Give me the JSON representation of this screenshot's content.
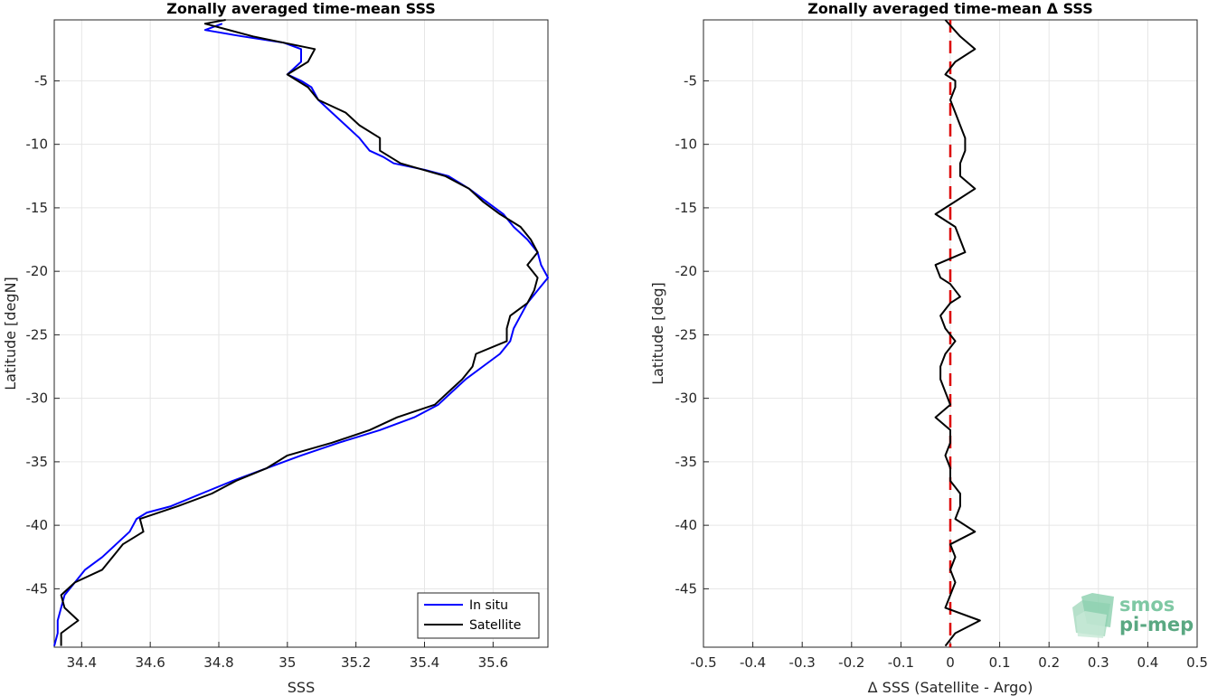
{
  "chart_data": [
    {
      "type": "line",
      "title": "Zonally averaged time-mean SSS",
      "xlabel": "SSS",
      "ylabel": "Latitude [degN]",
      "xlim": [
        34.32,
        35.76
      ],
      "ylim": [
        -49.6,
        -0.2
      ],
      "xticks": [
        34.4,
        34.6,
        34.8,
        35,
        35.2,
        35.4,
        35.6
      ],
      "xtick_labels": [
        "34.4",
        "34.6",
        "34.8",
        "35",
        "35.2",
        "35.4",
        "35.6"
      ],
      "yticks": [
        -5,
        -10,
        -15,
        -20,
        -25,
        -30,
        -35,
        -40,
        -45
      ],
      "ytick_labels": [
        "-5",
        "-10",
        "-15",
        "-20",
        "-25",
        "-30",
        "-35",
        "-40",
        "-45"
      ],
      "grid": true,
      "legend": "bottom-right",
      "series": [
        {
          "name": "In situ",
          "color": "#0000ff",
          "points": [
            [
              34.81,
              -0.5
            ],
            [
              34.76,
              -1.0
            ],
            [
              34.87,
              -1.5
            ],
            [
              34.99,
              -2.0
            ],
            [
              35.04,
              -2.5
            ],
            [
              35.04,
              -3.0
            ],
            [
              35.04,
              -3.5
            ],
            [
              35.02,
              -4.0
            ],
            [
              35.0,
              -4.5
            ],
            [
              35.04,
              -5.0
            ],
            [
              35.07,
              -5.5
            ],
            [
              35.08,
              -6.0
            ],
            [
              35.09,
              -6.5
            ],
            [
              35.13,
              -7.5
            ],
            [
              35.17,
              -8.5
            ],
            [
              35.21,
              -9.5
            ],
            [
              35.24,
              -10.5
            ],
            [
              35.28,
              -11.0
            ],
            [
              35.31,
              -11.5
            ],
            [
              35.4,
              -12.0
            ],
            [
              35.47,
              -12.5
            ],
            [
              35.53,
              -13.5
            ],
            [
              35.58,
              -14.5
            ],
            [
              35.63,
              -15.5
            ],
            [
              35.66,
              -16.5
            ],
            [
              35.7,
              -17.5
            ],
            [
              35.73,
              -18.5
            ],
            [
              35.74,
              -19.5
            ],
            [
              35.76,
              -20.5
            ],
            [
              35.73,
              -21.5
            ],
            [
              35.7,
              -22.5
            ],
            [
              35.68,
              -23.5
            ],
            [
              35.66,
              -24.5
            ],
            [
              35.65,
              -25.5
            ],
            [
              35.62,
              -26.5
            ],
            [
              35.57,
              -27.5
            ],
            [
              35.52,
              -28.5
            ],
            [
              35.48,
              -29.5
            ],
            [
              35.44,
              -30.5
            ],
            [
              35.37,
              -31.5
            ],
            [
              35.27,
              -32.5
            ],
            [
              35.15,
              -33.5
            ],
            [
              35.04,
              -34.5
            ],
            [
              34.94,
              -35.5
            ],
            [
              34.84,
              -36.5
            ],
            [
              34.75,
              -37.5
            ],
            [
              34.66,
              -38.5
            ],
            [
              34.59,
              -39.0
            ],
            [
              34.56,
              -39.5
            ],
            [
              34.54,
              -40.5
            ],
            [
              34.5,
              -41.5
            ],
            [
              34.46,
              -42.5
            ],
            [
              34.41,
              -43.5
            ],
            [
              34.38,
              -44.5
            ],
            [
              34.35,
              -45.5
            ],
            [
              34.34,
              -46.5
            ],
            [
              34.33,
              -47.5
            ],
            [
              34.33,
              -48.5
            ],
            [
              34.32,
              -49.5
            ]
          ]
        },
        {
          "name": "Satellite",
          "color": "#000000",
          "points": [
            [
              34.82,
              -0.2
            ],
            [
              34.76,
              -0.5
            ],
            [
              34.9,
              -1.5
            ],
            [
              35.08,
              -2.5
            ],
            [
              35.06,
              -3.5
            ],
            [
              35.0,
              -4.5
            ],
            [
              35.06,
              -5.5
            ],
            [
              35.09,
              -6.5
            ],
            [
              35.17,
              -7.5
            ],
            [
              35.21,
              -8.5
            ],
            [
              35.27,
              -9.5
            ],
            [
              35.27,
              -10.5
            ],
            [
              35.33,
              -11.5
            ],
            [
              35.46,
              -12.5
            ],
            [
              35.53,
              -13.5
            ],
            [
              35.57,
              -14.5
            ],
            [
              35.62,
              -15.5
            ],
            [
              35.68,
              -16.5
            ],
            [
              35.71,
              -17.5
            ],
            [
              35.73,
              -18.5
            ],
            [
              35.7,
              -19.5
            ],
            [
              35.73,
              -20.5
            ],
            [
              35.72,
              -21.5
            ],
            [
              35.7,
              -22.5
            ],
            [
              35.65,
              -23.5
            ],
            [
              35.64,
              -24.5
            ],
            [
              35.64,
              -25.5
            ],
            [
              35.55,
              -26.5
            ],
            [
              35.54,
              -27.5
            ],
            [
              35.51,
              -28.5
            ],
            [
              35.47,
              -29.5
            ],
            [
              35.43,
              -30.5
            ],
            [
              35.32,
              -31.5
            ],
            [
              35.24,
              -32.5
            ],
            [
              35.13,
              -33.5
            ],
            [
              35.0,
              -34.5
            ],
            [
              34.94,
              -35.5
            ],
            [
              34.85,
              -36.5
            ],
            [
              34.78,
              -37.5
            ],
            [
              34.68,
              -38.5
            ],
            [
              34.57,
              -39.5
            ],
            [
              34.58,
              -40.5
            ],
            [
              34.52,
              -41.5
            ],
            [
              34.49,
              -42.5
            ],
            [
              34.46,
              -43.5
            ],
            [
              34.38,
              -44.5
            ],
            [
              34.34,
              -45.5
            ],
            [
              34.35,
              -46.5
            ],
            [
              34.39,
              -47.5
            ],
            [
              34.34,
              -48.5
            ],
            [
              34.34,
              -49.5
            ]
          ]
        }
      ]
    },
    {
      "type": "line",
      "title": "Zonally averaged time-mean Δ SSS",
      "xlabel": "Δ SSS (Satellite - Argo)",
      "ylabel": "Latitude [deg]",
      "xlim": [
        -0.5,
        0.5
      ],
      "ylim": [
        -49.6,
        -0.2
      ],
      "xticks": [
        -0.5,
        -0.4,
        -0.3,
        -0.2,
        -0.1,
        0,
        0.1,
        0.2,
        0.3,
        0.4,
        0.5
      ],
      "xtick_labels": [
        "-0.5",
        "-0.4",
        "-0.3",
        "-0.2",
        "-0.1",
        "0",
        "0.1",
        "0.2",
        "0.3",
        "0.4",
        "0.5"
      ],
      "yticks": [
        -5,
        -10,
        -15,
        -20,
        -25,
        -30,
        -35,
        -40,
        -45
      ],
      "ytick_labels": [
        "-5",
        "-10",
        "-15",
        "-20",
        "-25",
        "-30",
        "-35",
        "-40",
        "-45"
      ],
      "grid": true,
      "reference_line": {
        "x": 0,
        "style": "dashed",
        "color": "#dd0000"
      },
      "series": [
        {
          "color": "#000000",
          "points": [
            [
              -0.01,
              -0.2
            ],
            [
              0.02,
              -1.5
            ],
            [
              0.05,
              -2.5
            ],
            [
              0.01,
              -3.5
            ],
            [
              -0.01,
              -4.5
            ],
            [
              0.01,
              -5.0
            ],
            [
              0.01,
              -5.5
            ],
            [
              0.0,
              -6.5
            ],
            [
              0.01,
              -7.5
            ],
            [
              0.02,
              -8.5
            ],
            [
              0.03,
              -9.5
            ],
            [
              0.03,
              -10.5
            ],
            [
              0.02,
              -11.5
            ],
            [
              0.02,
              -12.5
            ],
            [
              0.05,
              -13.5
            ],
            [
              0.01,
              -14.5
            ],
            [
              -0.03,
              -15.5
            ],
            [
              0.01,
              -16.5
            ],
            [
              0.02,
              -17.5
            ],
            [
              0.03,
              -18.5
            ],
            [
              -0.03,
              -19.5
            ],
            [
              -0.02,
              -20.5
            ],
            [
              0.0,
              -21.0
            ],
            [
              0.02,
              -22.0
            ],
            [
              0.0,
              -22.5
            ],
            [
              -0.02,
              -23.5
            ],
            [
              -0.01,
              -24.5
            ],
            [
              0.0,
              -25.0
            ],
            [
              0.01,
              -25.5
            ],
            [
              -0.01,
              -26.5
            ],
            [
              -0.02,
              -27.5
            ],
            [
              -0.02,
              -28.5
            ],
            [
              -0.01,
              -29.5
            ],
            [
              0.0,
              -30.5
            ],
            [
              -0.03,
              -31.5
            ],
            [
              0.0,
              -32.5
            ],
            [
              0.0,
              -33.5
            ],
            [
              -0.01,
              -34.5
            ],
            [
              0.0,
              -35.5
            ],
            [
              0.0,
              -36.5
            ],
            [
              0.01,
              -37.0
            ],
            [
              0.02,
              -37.5
            ],
            [
              0.02,
              -38.5
            ],
            [
              0.01,
              -39.5
            ],
            [
              0.05,
              -40.5
            ],
            [
              0.0,
              -41.5
            ],
            [
              0.01,
              -42.5
            ],
            [
              0.0,
              -43.5
            ],
            [
              0.01,
              -44.5
            ],
            [
              0.0,
              -45.5
            ],
            [
              -0.01,
              -46.5
            ],
            [
              0.06,
              -47.5
            ],
            [
              0.01,
              -48.5
            ],
            [
              -0.01,
              -49.5
            ]
          ]
        }
      ]
    }
  ],
  "legend_entries": [
    {
      "label": "In situ",
      "color": "#0000ff"
    },
    {
      "label": "Satellite",
      "color": "#000000"
    }
  ],
  "watermark": {
    "line1": "smos",
    "line2": "pi-mep",
    "color1": "#7fc8a4",
    "color2": "#5aa882"
  }
}
